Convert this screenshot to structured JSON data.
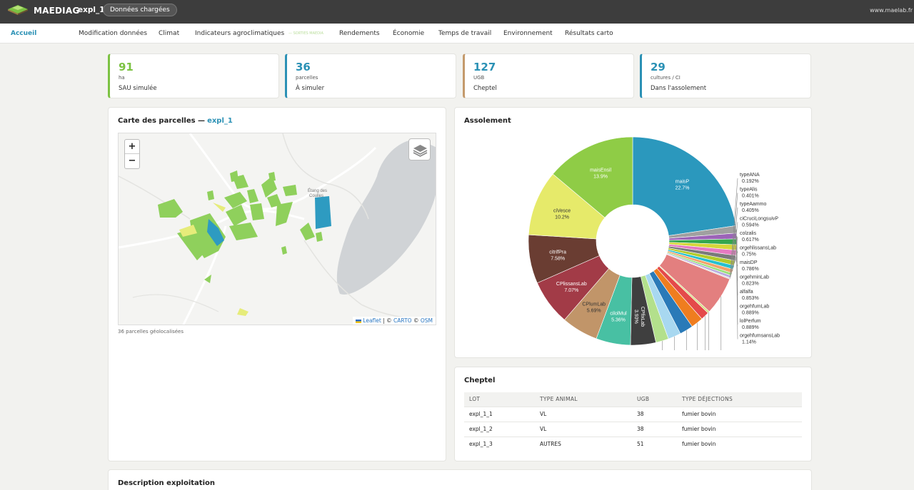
{
  "app": {
    "brand": "MAEDIAG",
    "project": "expl_1",
    "status_pill": "Données chargées",
    "site": "www.maelab.fr"
  },
  "nav": {
    "items": [
      "Accueil",
      "Modification données",
      "Climat",
      "Indicateurs agroclimatiques",
      "— SORTIES MAEDIA",
      "Rendements",
      "Économie",
      "Temps de travail",
      "Environnement",
      "Résultats carto"
    ]
  },
  "kpis": [
    {
      "value": "91",
      "unit": "ha",
      "label": "SAU simulée",
      "color": "#7cc242"
    },
    {
      "value": "36",
      "unit": "parcelles",
      "label": "À simuler",
      "color": "#2b91b5"
    },
    {
      "value": "127",
      "unit": "UGB",
      "label": "Cheptel",
      "color": "#c49a6c"
    },
    {
      "value": "29",
      "unit": "cultures / CI",
      "label": "Dans l'assolement",
      "color": "#2b91b5"
    }
  ],
  "map": {
    "title": "Carte des parcelles —",
    "title_link": "expl_1",
    "zoom_in": "+",
    "zoom_out": "−",
    "place_label": "Étang des Coulles",
    "attribution": {
      "leaflet": "Leaflet",
      "sep1": "| ©",
      "carto": "CARTO",
      "sep2": "©",
      "osm": "OSM"
    },
    "note": "36 parcelles géolocalisées"
  },
  "assolement": {
    "title": "Assolement",
    "slices": [
      {
        "name": "maisP",
        "pct": "22.7%",
        "color": "#2b98bd"
      },
      {
        "name": "orgehfumsansLab",
        "pct": "1.14%",
        "color": "#a0a0a0"
      },
      {
        "name": "lolPerfum",
        "pct": "0.889%",
        "color": "#9c64b8"
      },
      {
        "name": "orgehfumLab",
        "pct": "0.889%",
        "color": "#34a64e"
      },
      {
        "name": "alfalfa",
        "pct": "0.853%",
        "color": "#d6d639"
      },
      {
        "name": "orgehminLab",
        "pct": "0.823%",
        "color": "#e57ac1"
      },
      {
        "name": "maisDP",
        "pct": "0.786%",
        "color": "#7a7a7a"
      },
      {
        "name": "orgehlissansLab",
        "pct": "0.75%",
        "color": "#b4cb2a"
      },
      {
        "name": "colzalis",
        "pct": "0.617%",
        "color": "#26c0cf"
      },
      {
        "name": "ciCruciLongsuivP",
        "pct": "0.594%",
        "color": "#f3a26a"
      },
      {
        "name": "typeAammo",
        "pct": "0.405%",
        "color": "#9be07a"
      },
      {
        "name": "typeAlis",
        "pct": "0.401%",
        "color": "#b8a8e0"
      },
      {
        "name": "typeANA",
        "pct": "0.192%",
        "color": "#d9d9d9"
      },
      {
        "name": "",
        "pct": "",
        "color": "#e37f7f",
        "value": 5.9
      },
      {
        "name": "",
        "pct": "",
        "color": "#d6df7f",
        "value": 0.3
      },
      {
        "name": "",
        "pct": "",
        "color": "#e44a4a",
        "value": 1.3
      },
      {
        "name": "",
        "pct": "",
        "color": "#ef7d1f",
        "value": 1.9
      },
      {
        "name": "",
        "pct": "",
        "color": "#2a7ab8",
        "value": 2.1
      },
      {
        "name": "",
        "pct": "",
        "color": "#a8d8f0",
        "value": 2.0
      },
      {
        "name": "",
        "pct": "",
        "color": "#b3e08c",
        "value": 2.0
      },
      {
        "name": "CPfixLab",
        "pct": "3.93%",
        "color": "#3f3f3f"
      },
      {
        "name": "cilolMul",
        "pct": "5.36%",
        "color": "#48c0a3"
      },
      {
        "name": "CPlumLab",
        "pct": "5.69%",
        "color": "#c19569"
      },
      {
        "name": "CPlissansLab",
        "pct": "7.07%",
        "color": "#a23b47"
      },
      {
        "name": "citrifPra",
        "pct": "7.58%",
        "color": "#6a3d32"
      },
      {
        "name": "ciVesce",
        "pct": "10.2%",
        "color": "#e6ea6a"
      },
      {
        "name": "maisEnsil",
        "pct": "13.9%",
        "color": "#8fcc46"
      }
    ]
  },
  "chart_data": {
    "type": "pie",
    "title": "Assolement",
    "categories": [
      "maisP",
      "maisEnsil",
      "ciVesce",
      "citrifPra",
      "CPlissansLab",
      "CPlumLab",
      "cilolMul",
      "CPfixLab",
      "orgehfumsansLab",
      "lolPerfum",
      "orgehfumLab",
      "alfalfa",
      "orgehminLab",
      "maisDP",
      "orgehlissansLab",
      "colzalis",
      "ciCruciLongsuivP",
      "typeAammo",
      "typeAlis",
      "typeANA"
    ],
    "values": [
      22.7,
      13.9,
      10.2,
      7.58,
      7.07,
      5.69,
      5.36,
      3.93,
      1.14,
      0.889,
      0.889,
      0.853,
      0.823,
      0.786,
      0.75,
      0.617,
      0.594,
      0.405,
      0.401,
      0.192
    ],
    "donut": true
  },
  "cheptel": {
    "title": "Cheptel",
    "headers": [
      "LOT",
      "TYPE ANIMAL",
      "UGB",
      "TYPE DÉJECTIONS"
    ],
    "rows": [
      [
        "expl_1_1",
        "VL",
        "38",
        "fumier bovin"
      ],
      [
        "expl_1_2",
        "VL",
        "38",
        "fumier bovin"
      ],
      [
        "expl_1_3",
        "AUTRES",
        "51",
        "fumier bovin"
      ]
    ]
  },
  "description": {
    "title": "Description exploitation"
  }
}
